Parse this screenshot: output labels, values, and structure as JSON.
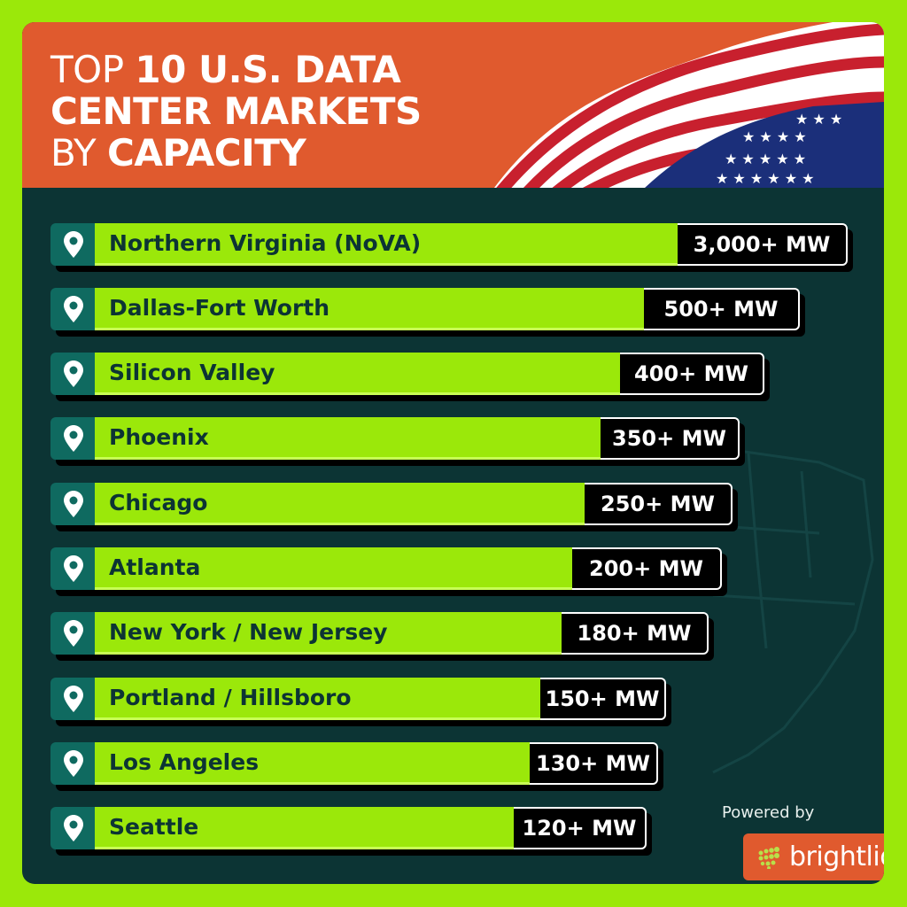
{
  "header": {
    "title_parts": [
      {
        "text": "TOP ",
        "bold": false
      },
      {
        "text": "10 U.S. DATA",
        "bold": true
      },
      {
        "text": "CENTER MARKETS",
        "bold": true
      },
      {
        "text": "BY ",
        "bold": false
      },
      {
        "text": "CAPACITY",
        "bold": true
      }
    ]
  },
  "chart_data": {
    "type": "bar",
    "title": "TOP 10 U.S. DATA CENTER MARKETS BY CAPACITY",
    "categories": [
      "Northern Virginia (NoVA)",
      "Dallas-Fort Worth",
      "Silicon Valley",
      "Phoenix",
      "Chicago",
      "Atlanta",
      "New York / New Jersey",
      "Portland / Hillsboro",
      "Los Angeles",
      "Seattle"
    ],
    "labels": [
      "3,000+ MW",
      "500+ MW",
      "400+ MW",
      "350+ MW",
      "250+ MW",
      "200+ MW",
      "180+ MW",
      "150+ MW",
      "130+ MW",
      "120+ MW"
    ],
    "values": [
      3000,
      500,
      400,
      350,
      250,
      200,
      180,
      150,
      130,
      120
    ],
    "unit": "MW"
  },
  "footer": {
    "powered_by": "Powered by",
    "brand": "brightlio"
  },
  "colors": {
    "background": "#9be80a",
    "header": "#e05a2e",
    "panel": "#0c3434",
    "pin_box": "#0f6a60"
  }
}
